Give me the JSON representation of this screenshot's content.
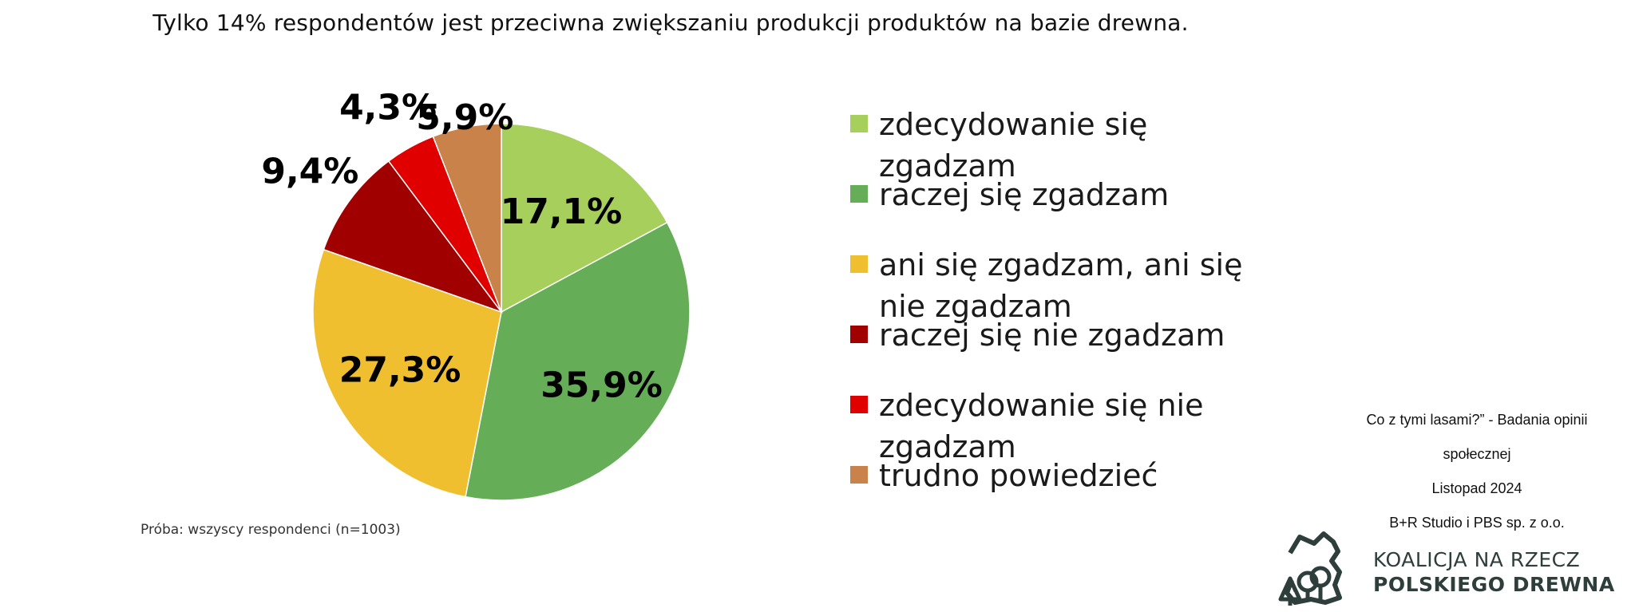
{
  "chart_data": {
    "type": "pie",
    "title": "Tylko 14% respondentów jest przeciwna zwiększaniu produkcji produktów na bazie drewna.",
    "start_angle_deg": 0,
    "direction": "clockwise",
    "slices": [
      {
        "label": "zdecydowanie się zgadzam",
        "value": 17.1,
        "value_label": "17,1%",
        "color": "#a6cf5b"
      },
      {
        "label": "raczej się zgadzam",
        "value": 35.9,
        "value_label": "35,9%",
        "color": "#65ae57"
      },
      {
        "label": "ani się zgadzam, ani się nie zgadzam",
        "value": 27.3,
        "value_label": "27,3%",
        "color": "#f0bf2f"
      },
      {
        "label": "raczej się nie zgadzam",
        "value": 9.4,
        "value_label": "9,4%",
        "color": "#a00000"
      },
      {
        "label": "zdecydowanie się nie zgadzam",
        "value": 4.3,
        "value_label": "4,3%",
        "color": "#e00000"
      },
      {
        "label": "trudno powiedzieć",
        "value": 5.9,
        "value_label": "5,9%",
        "color": "#c8824a"
      }
    ],
    "legend_placement": "right"
  },
  "sample_note": "Próba: wszyscy respondenci (n=1003)",
  "source": {
    "line1": "Co z tymi lasami?”  - Badania opinii",
    "line2": "społecznej",
    "line3": "Listopad 2024",
    "line4": "B+R Studio i PBS sp. z o.o."
  },
  "logo": {
    "line1": "KOALICJA NA RZECZ",
    "line2": "POLSKIEGO DREWNA",
    "color": "#2e3e3b",
    "icon": "forest-map-icon"
  }
}
